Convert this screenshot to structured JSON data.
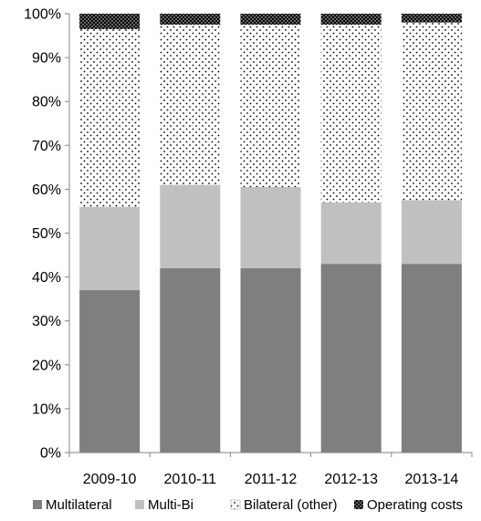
{
  "chart_data": {
    "type": "bar",
    "stacked": true,
    "percent": true,
    "categories": [
      "2009-10",
      "2010-11",
      "2011-12",
      "2012-13",
      "2013-14"
    ],
    "series": [
      {
        "name": "Multilateral",
        "values": [
          37,
          42,
          42,
          43,
          43
        ],
        "color": "#7f7f7f",
        "pattern": "solid"
      },
      {
        "name": "Multi-Bi",
        "values": [
          19,
          19,
          18.5,
          14,
          14.5
        ],
        "color": "#c0c0c0",
        "pattern": "solid"
      },
      {
        "name": "Bilateral (other)",
        "values": [
          40.5,
          36.5,
          37,
          40.5,
          40.5
        ],
        "color": "#ffffff",
        "pattern": "dots"
      },
      {
        "name": "Operating costs",
        "values": [
          3.5,
          2.5,
          2.5,
          2.5,
          2
        ],
        "color": "#000000",
        "pattern": "dense-dots"
      }
    ],
    "ylim": [
      0,
      100
    ],
    "yticks": [
      "0%",
      "10%",
      "20%",
      "30%",
      "40%",
      "50%",
      "60%",
      "70%",
      "80%",
      "90%",
      "100%"
    ],
    "legend_position": "bottom",
    "grid": false,
    "title": "",
    "xlabel": "",
    "ylabel": ""
  }
}
